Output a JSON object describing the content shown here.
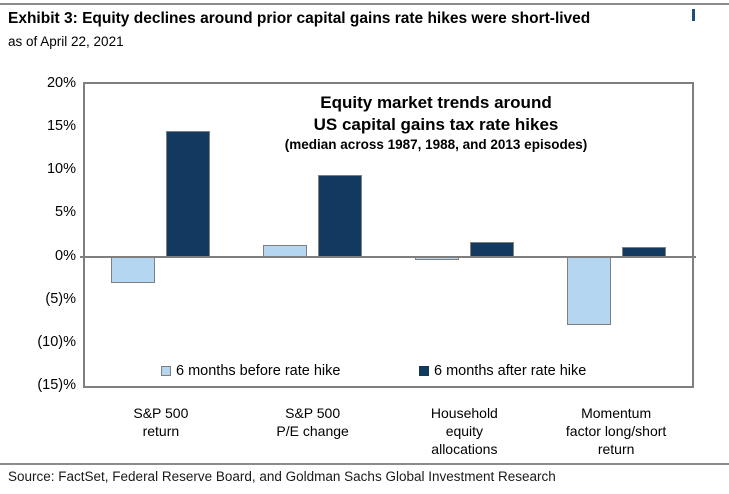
{
  "page": {
    "header": {
      "exhibit_title": "Exhibit 3: Equity declines around prior capital gains rate hikes were short-lived",
      "as_of": "as of April 22, 2021"
    },
    "footer": {
      "source": "Source: FactSet, Federal Reserve Board, and Goldman Sachs Global Investment Research"
    }
  },
  "chart_data": {
    "type": "bar",
    "title_lines": [
      "Equity market trends around",
      "US capital gains tax rate hikes"
    ],
    "subtitle": "(median across 1987, 1988, and 2013 episodes)",
    "categories": [
      "S&P 500 return",
      "S&P 500 P/E change",
      "Household equity allocations",
      "Momentum factor long/short return"
    ],
    "category_label_lines": [
      [
        "S&P 500",
        "return"
      ],
      [
        "S&P 500",
        "P/E change"
      ],
      [
        "Household",
        "equity",
        "allocations"
      ],
      [
        "Momentum",
        "factor long/short",
        "return"
      ]
    ],
    "series": [
      {
        "name": "6 months before rate hike",
        "color": "#B4D6F0",
        "values": [
          -3.1,
          1.3,
          -0.4,
          -7.9
        ]
      },
      {
        "name": "6 months after rate hike",
        "color": "#123A60",
        "values": [
          14.6,
          9.5,
          1.7,
          1.1
        ]
      }
    ],
    "ylim": [
      -15,
      20
    ],
    "ytick_step": 5,
    "ytick_labels": [
      "20%",
      "15%",
      "10%",
      "5%",
      "0%",
      "(5)%",
      "(10)%",
      "(15)%"
    ],
    "yunit": "percent",
    "grid": false,
    "legend_position": "inside-bottom",
    "colors": {
      "bar_before": "#B4D6F0",
      "bar_after": "#123A60",
      "bar_border": "#7F7F7F",
      "axis_border": "#7F7F7F"
    }
  }
}
